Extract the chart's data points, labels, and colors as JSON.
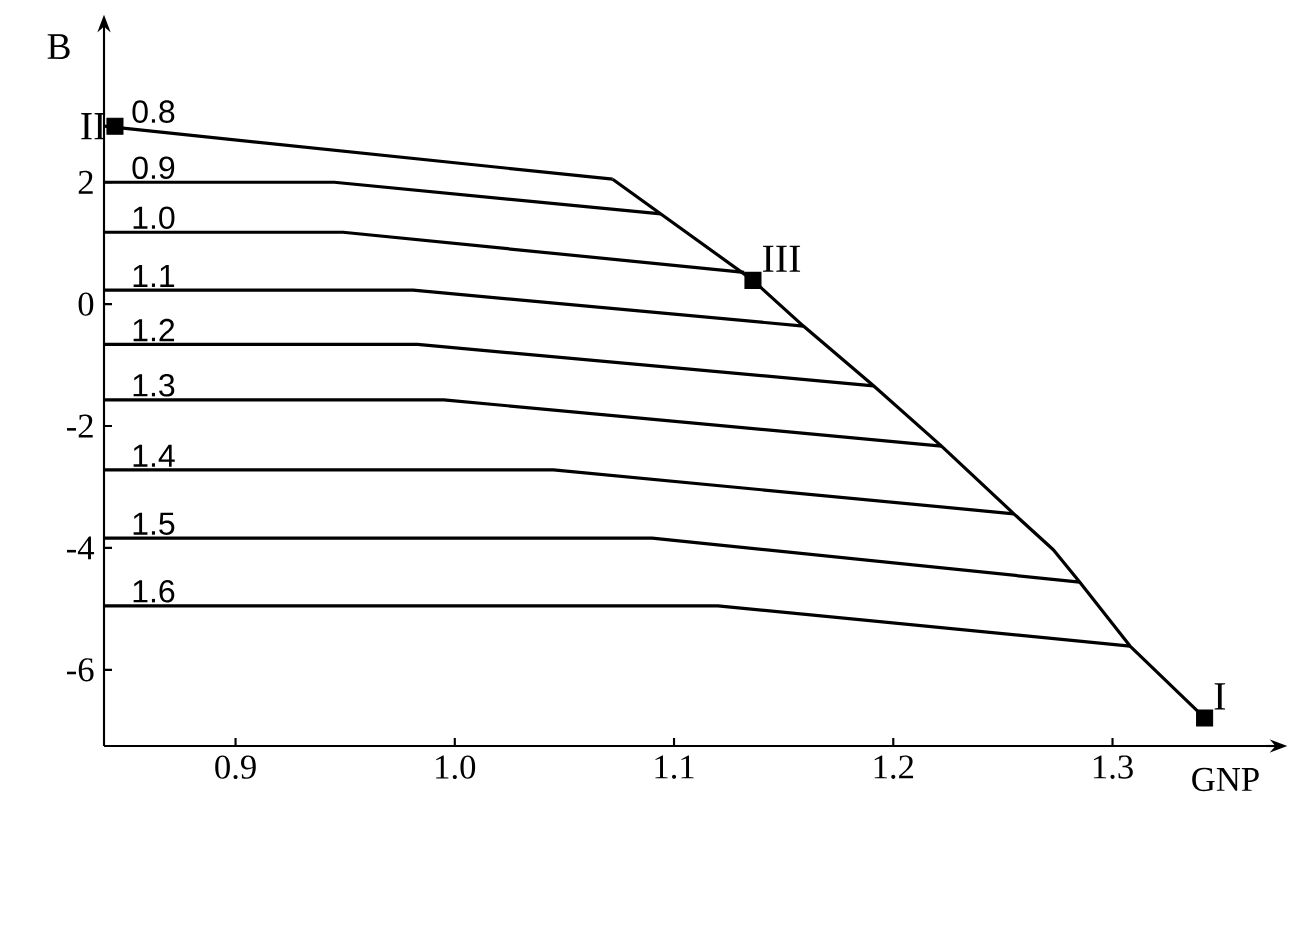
{
  "chart_data": {
    "type": "line",
    "xlabel": "GNP",
    "ylabel": "B",
    "xlim": [
      0.84,
      1.37
    ],
    "ylim": [
      -7.25,
      4.4
    ],
    "xticks": [
      {
        "value": 0.9,
        "label": "0.9"
      },
      {
        "value": 1.0,
        "label": "1.0"
      },
      {
        "value": 1.1,
        "label": "1.1"
      },
      {
        "value": 1.2,
        "label": "1.2"
      },
      {
        "value": 1.3,
        "label": "1.3"
      }
    ],
    "yticks": [
      2,
      0,
      -2,
      -4,
      -6
    ],
    "series": [
      {
        "name": "0.8",
        "color": "#000000",
        "x": [
          0.84,
          1.072
        ],
        "values": [
          2.92,
          2.05
        ]
      },
      {
        "name": "0.9",
        "color": "#000000",
        "x": [
          0.84,
          0.945,
          1.094
        ],
        "values": [
          2.0,
          2.0,
          1.48
        ]
      },
      {
        "name": "1.0",
        "color": "#000000",
        "x": [
          0.84,
          0.949,
          1.132
        ],
        "values": [
          1.18,
          1.18,
          0.52
        ]
      },
      {
        "name": "1.1",
        "color": "#000000",
        "x": [
          0.84,
          0.981,
          1.159
        ],
        "values": [
          0.23,
          0.23,
          -0.36
        ]
      },
      {
        "name": "1.2",
        "color": "#000000",
        "x": [
          0.84,
          0.983,
          1.191
        ],
        "values": [
          -0.66,
          -0.66,
          -1.34
        ]
      },
      {
        "name": "1.3",
        "color": "#000000",
        "x": [
          0.84,
          0.995,
          1.222
        ],
        "values": [
          -1.57,
          -1.57,
          -2.33
        ]
      },
      {
        "name": "1.4",
        "color": "#000000",
        "x": [
          0.84,
          1.045,
          1.255
        ],
        "values": [
          -2.72,
          -2.72,
          -3.44
        ]
      },
      {
        "name": "1.5",
        "color": "#000000",
        "x": [
          0.84,
          1.09,
          1.285
        ],
        "values": [
          -3.84,
          -3.84,
          -4.56
        ]
      },
      {
        "name": "1.6",
        "color": "#000000",
        "x": [
          0.84,
          1.12,
          1.308
        ],
        "values": [
          -4.95,
          -4.95,
          -5.61
        ]
      },
      {
        "color": "#000000",
        "x": [
          1.072,
          1.094,
          1.136,
          1.159,
          1.191,
          1.222,
          1.255,
          1.273,
          1.285,
          1.308,
          1.342
        ],
        "values": [
          2.05,
          1.48,
          0.39,
          -0.36,
          -1.34,
          -2.33,
          -3.44,
          -4.03,
          -4.56,
          -5.61,
          -6.79
        ]
      },
      {
        "type": "scatter",
        "marker": "square",
        "color": "#000000",
        "x": [
          0.845,
          1.136,
          1.342
        ],
        "values": [
          2.92,
          0.39,
          -6.79
        ]
      }
    ],
    "annotations": [
      {
        "text": "II",
        "x": 0.845,
        "y": 2.92
      },
      {
        "text": "III",
        "x": 1.136,
        "y": 0.39
      },
      {
        "text": "I",
        "x": 1.342,
        "y": -6.79
      }
    ]
  }
}
